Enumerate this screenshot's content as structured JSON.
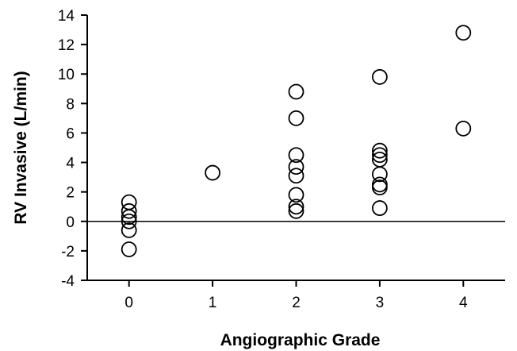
{
  "chart_data": {
    "type": "scatter",
    "title": "",
    "xlabel": "Angiographic Grade",
    "ylabel": "RV Invasive (L/min)",
    "xlim": [
      -0.5,
      4.5
    ],
    "ylim": [
      -4,
      14
    ],
    "x_ticks": [
      0,
      1,
      2,
      3,
      4
    ],
    "y_ticks": [
      -4,
      -2,
      0,
      2,
      4,
      6,
      8,
      10,
      12,
      14
    ],
    "zero_line": true,
    "grid": false,
    "marker": "open-circle",
    "points": [
      {
        "x": 0,
        "y": 1.3
      },
      {
        "x": 0,
        "y": 0.7
      },
      {
        "x": 0,
        "y": 0.3
      },
      {
        "x": 0,
        "y": 0.0
      },
      {
        "x": 0,
        "y": -0.6
      },
      {
        "x": 0,
        "y": -1.9
      },
      {
        "x": 1,
        "y": 3.3
      },
      {
        "x": 2,
        "y": 8.8
      },
      {
        "x": 2,
        "y": 7.0
      },
      {
        "x": 2,
        "y": 4.5
      },
      {
        "x": 2,
        "y": 3.7
      },
      {
        "x": 2,
        "y": 3.1
      },
      {
        "x": 2,
        "y": 1.8
      },
      {
        "x": 2,
        "y": 1.0
      },
      {
        "x": 2,
        "y": 0.7
      },
      {
        "x": 3,
        "y": 9.8
      },
      {
        "x": 3,
        "y": 4.8
      },
      {
        "x": 3,
        "y": 4.5
      },
      {
        "x": 3,
        "y": 4.2
      },
      {
        "x": 3,
        "y": 3.2
      },
      {
        "x": 3,
        "y": 2.5
      },
      {
        "x": 3,
        "y": 2.3
      },
      {
        "x": 3,
        "y": 0.9
      },
      {
        "x": 4,
        "y": 12.8
      },
      {
        "x": 4,
        "y": 6.3
      }
    ]
  }
}
